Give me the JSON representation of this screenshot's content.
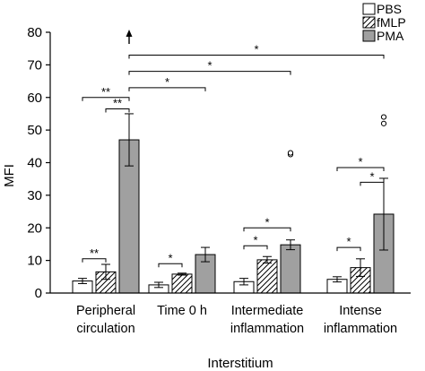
{
  "chart_data": {
    "type": "bar",
    "categories": [
      [
        "Peripheral",
        "circulation"
      ],
      [
        "Time 0 h"
      ],
      [
        "Intermediate",
        "inflammation"
      ],
      [
        "Intense",
        "inflammation"
      ]
    ],
    "series": [
      {
        "name": "PBS",
        "values": [
          3.7,
          2.5,
          3.5,
          4.2
        ],
        "errors": [
          0.8,
          0.8,
          1.0,
          0.8
        ],
        "fill": "white"
      },
      {
        "name": "fMLP",
        "values": [
          6.5,
          5.8,
          10.2,
          7.8
        ],
        "errors": [
          2.3,
          0.3,
          1.0,
          2.7
        ],
        "fill": "hatched"
      },
      {
        "name": "PMA",
        "values": [
          47,
          11.8,
          14.8,
          24.2
        ],
        "errors": [
          8,
          2.2,
          1.5,
          11
        ],
        "fill": "#a0a0a0"
      }
    ],
    "xlabel": "Interstitium",
    "ylabel": "MFI",
    "ylim": [
      0,
      80
    ],
    "yticks": [
      0,
      10,
      20,
      30,
      40,
      50,
      60,
      70,
      80
    ],
    "grid": false,
    "legend_position": "top-right",
    "outliers": [
      {
        "category": 2,
        "series": 2,
        "values": [
          42.5,
          43
        ]
      },
      {
        "category": 3,
        "series": 2,
        "values": [
          52,
          54
        ]
      }
    ],
    "arrow": {
      "category": 0,
      "series": 2,
      "direction": "up"
    },
    "significance": [
      {
        "label": "**",
        "from": [
          0,
          0
        ],
        "to": [
          0,
          1
        ],
        "y": 10.5
      },
      {
        "label": "**",
        "from": [
          0,
          0
        ],
        "to": [
          0,
          2
        ],
        "y": 60
      },
      {
        "label": "**",
        "from": [
          0,
          1
        ],
        "to": [
          0,
          2
        ],
        "y": 56.5
      },
      {
        "label": "*",
        "from": [
          0,
          2
        ],
        "to": [
          1,
          2
        ],
        "y": 63
      },
      {
        "label": "*",
        "from": [
          0,
          2
        ],
        "to": [
          2,
          2
        ],
        "y": 68
      },
      {
        "label": "*",
        "from": [
          0,
          2
        ],
        "to": [
          3,
          2
        ],
        "y": 73
      },
      {
        "label": "*",
        "from": [
          1,
          0
        ],
        "to": [
          1,
          1
        ],
        "y": 9
      },
      {
        "label": "*",
        "from": [
          2,
          0
        ],
        "to": [
          2,
          1
        ],
        "y": 14.5
      },
      {
        "label": "*",
        "from": [
          2,
          0
        ],
        "to": [
          2,
          2
        ],
        "y": 20
      },
      {
        "label": "*",
        "from": [
          3,
          0
        ],
        "to": [
          3,
          1
        ],
        "y": 14
      },
      {
        "label": "*",
        "from": [
          3,
          0
        ],
        "to": [
          3,
          2
        ],
        "y": 38.5
      },
      {
        "label": "*",
        "from": [
          3,
          1
        ],
        "to": [
          3,
          2
        ],
        "y": 34
      }
    ]
  }
}
